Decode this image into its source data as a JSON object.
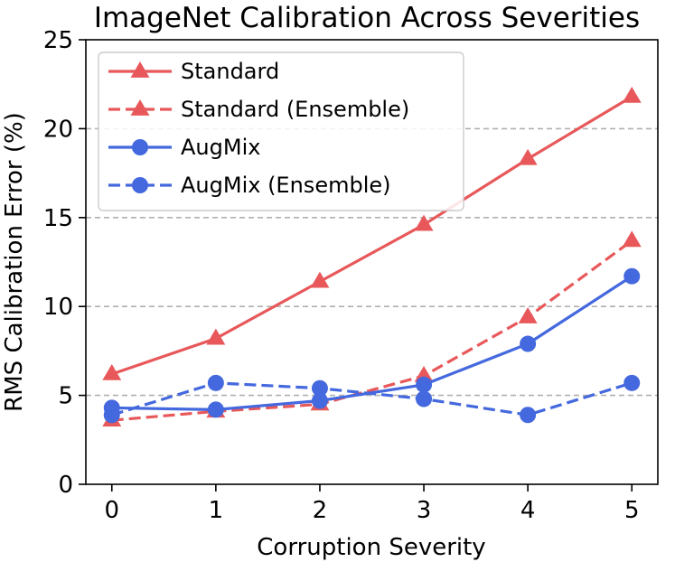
{
  "chart_data": {
    "type": "line",
    "title": "ImageNet Calibration Across Severities",
    "xlabel": "Corruption Severity",
    "ylabel": "RMS Calibration Error (%)",
    "x": [
      0,
      1,
      2,
      3,
      4,
      5
    ],
    "xlim": [
      -0.25,
      5.25
    ],
    "ylim": [
      0,
      25
    ],
    "yticks": [
      0,
      5,
      10,
      15,
      20,
      25
    ],
    "xticks": [
      0,
      1,
      2,
      3,
      4,
      5
    ],
    "grid": "horizontal dashed",
    "legend_position": "top-left",
    "series": [
      {
        "name": "Standard",
        "color": "#e8585a",
        "linestyle": "solid",
        "marker": "triangle",
        "values": [
          6.2,
          8.2,
          11.4,
          14.6,
          18.3,
          21.8
        ]
      },
      {
        "name": "Standard (Ensemble)",
        "color": "#e8585a",
        "linestyle": "dashed",
        "marker": "triangle",
        "values": [
          3.6,
          4.1,
          4.5,
          6.1,
          9.4,
          13.7
        ]
      },
      {
        "name": "AugMix",
        "color": "#4468de",
        "linestyle": "solid",
        "marker": "circle",
        "values": [
          4.3,
          4.2,
          4.7,
          5.6,
          7.9,
          11.7
        ]
      },
      {
        "name": "AugMix (Ensemble)",
        "color": "#4468de",
        "linestyle": "dashed",
        "marker": "circle",
        "values": [
          3.9,
          5.7,
          5.4,
          4.8,
          3.9,
          5.7
        ]
      }
    ]
  }
}
